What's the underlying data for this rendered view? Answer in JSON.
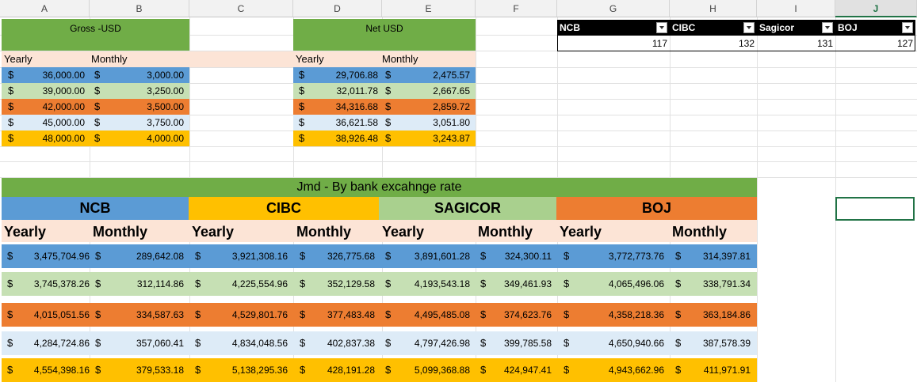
{
  "columns": [
    "A",
    "B",
    "C",
    "D",
    "E",
    "F",
    "G",
    "H",
    "I",
    "J"
  ],
  "colors": {
    "green": "#70ad47",
    "peach": "#fce4d6",
    "blue": "#5b9bd5",
    "light_green": "#c6e0b4",
    "orange": "#ed7d31",
    "light_blue": "#ddebf7",
    "gold": "#ffc000",
    "sagicor_green": "#a9d08e",
    "black": "#000000"
  },
  "top": {
    "gross_title": "Gross -USD",
    "net_title": "Net USD",
    "yearly": "Yearly",
    "monthly": "Monthly",
    "currency": "$",
    "gross_rows": [
      {
        "yearly": "36,000.00",
        "monthly": "3,000.00"
      },
      {
        "yearly": "39,000.00",
        "monthly": "3,250.00"
      },
      {
        "yearly": "42,000.00",
        "monthly": "3,500.00"
      },
      {
        "yearly": "45,000.00",
        "monthly": "3,750.00"
      },
      {
        "yearly": "48,000.00",
        "monthly": "4,000.00"
      }
    ],
    "net_rows": [
      {
        "yearly": "29,706.88",
        "monthly": "2,475.57"
      },
      {
        "yearly": "32,011.78",
        "monthly": "2,667.65"
      },
      {
        "yearly": "34,316.68",
        "monthly": "2,859.72"
      },
      {
        "yearly": "36,621.58",
        "monthly": "3,051.80"
      },
      {
        "yearly": "38,926.48",
        "monthly": "3,243.87"
      }
    ]
  },
  "rates_table": {
    "headers": [
      "NCB",
      "CIBC",
      "Sagicor",
      "BOJ"
    ],
    "values": [
      "117",
      "132",
      "131",
      "127"
    ]
  },
  "jmd": {
    "title": "Jmd - By bank excahnge rate",
    "banks": [
      "NCB",
      "CIBC",
      "SAGICOR",
      "BOJ"
    ],
    "yearly": "Yearly",
    "monthly": "Monthly",
    "currency": "$",
    "rows": [
      [
        "3,475,704.96",
        "289,642.08",
        "3,921,308.16",
        "326,775.68",
        "3,891,601.28",
        "324,300.11",
        "3,772,773.76",
        "314,397.81"
      ],
      [
        "3,745,378.26",
        "312,114.86",
        "4,225,554.96",
        "352,129.58",
        "4,193,543.18",
        "349,461.93",
        "4,065,496.06",
        "338,791.34"
      ],
      [
        "4,015,051.56",
        "334,587.63",
        "4,529,801.76",
        "377,483.48",
        "4,495,485.08",
        "374,623.76",
        "4,358,218.36",
        "363,184.86"
      ],
      [
        "4,284,724.86",
        "357,060.41",
        "4,834,048.56",
        "402,837.38",
        "4,797,426.98",
        "399,785.58",
        "4,650,940.66",
        "387,578.39"
      ],
      [
        "4,554,398.16",
        "379,533.18",
        "5,138,295.36",
        "428,191.28",
        "5,099,368.88",
        "424,947.41",
        "4,943,662.96",
        "411,971.91"
      ]
    ]
  }
}
